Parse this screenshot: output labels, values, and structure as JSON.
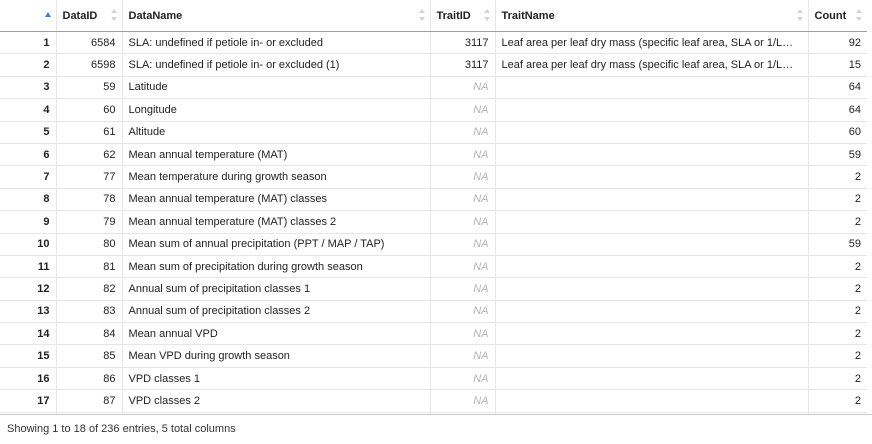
{
  "table": {
    "columns": [
      "",
      "DataID",
      "DataName",
      "TraitID",
      "TraitName",
      "Count"
    ],
    "rows": [
      {
        "idx": "1",
        "data_id": "6584",
        "data_name": "SLA: undefined if petiole in- or excluded",
        "trait_id": "3117",
        "trait_name": "Leaf area per leaf dry mass (specific leaf area, SLA or 1/LMA)...",
        "count": "92"
      },
      {
        "idx": "2",
        "data_id": "6598",
        "data_name": "SLA: undefined if petiole in- or excluded (1)",
        "trait_id": "3117",
        "trait_name": "Leaf area per leaf dry mass (specific leaf area, SLA or 1/LMA)...",
        "count": "15"
      },
      {
        "idx": "3",
        "data_id": "59",
        "data_name": "Latitude",
        "trait_id": "NA",
        "trait_name": "",
        "count": "64"
      },
      {
        "idx": "4",
        "data_id": "60",
        "data_name": "Longitude",
        "trait_id": "NA",
        "trait_name": "",
        "count": "64"
      },
      {
        "idx": "5",
        "data_id": "61",
        "data_name": "Altitude",
        "trait_id": "NA",
        "trait_name": "",
        "count": "60"
      },
      {
        "idx": "6",
        "data_id": "62",
        "data_name": "Mean annual temperature (MAT)",
        "trait_id": "NA",
        "trait_name": "",
        "count": "59"
      },
      {
        "idx": "7",
        "data_id": "77",
        "data_name": "Mean temperature during growth season",
        "trait_id": "NA",
        "trait_name": "",
        "count": "2"
      },
      {
        "idx": "8",
        "data_id": "78",
        "data_name": "Mean annual temperature (MAT) classes",
        "trait_id": "NA",
        "trait_name": "",
        "count": "2"
      },
      {
        "idx": "9",
        "data_id": "79",
        "data_name": "Mean annual temperature (MAT) classes 2",
        "trait_id": "NA",
        "trait_name": "",
        "count": "2"
      },
      {
        "idx": "10",
        "data_id": "80",
        "data_name": "Mean sum of annual precipitation (PPT / MAP / TAP)",
        "trait_id": "NA",
        "trait_name": "",
        "count": "59"
      },
      {
        "idx": "11",
        "data_id": "81",
        "data_name": "Mean sum of precipitation during growth season",
        "trait_id": "NA",
        "trait_name": "",
        "count": "2"
      },
      {
        "idx": "12",
        "data_id": "82",
        "data_name": "Annual sum of precipitation classes 1",
        "trait_id": "NA",
        "trait_name": "",
        "count": "2"
      },
      {
        "idx": "13",
        "data_id": "83",
        "data_name": "Annual sum of precipitation classes 2",
        "trait_id": "NA",
        "trait_name": "",
        "count": "2"
      },
      {
        "idx": "14",
        "data_id": "84",
        "data_name": "Mean annual VPD",
        "trait_id": "NA",
        "trait_name": "",
        "count": "2"
      },
      {
        "idx": "15",
        "data_id": "85",
        "data_name": "Mean VPD during growth season",
        "trait_id": "NA",
        "trait_name": "",
        "count": "2"
      },
      {
        "idx": "16",
        "data_id": "86",
        "data_name": "VPD classes 1",
        "trait_id": "NA",
        "trait_name": "",
        "count": "2"
      },
      {
        "idx": "17",
        "data_id": "87",
        "data_name": "VPD classes 2",
        "trait_id": "NA",
        "trait_name": "",
        "count": "2"
      },
      {
        "idx": "",
        "data_id": "",
        "data_name": "",
        "trait_id": "",
        "trait_name": "",
        "count": ""
      }
    ]
  },
  "footer": {
    "info": "Showing 1 to 18 of 236 entries, 5 total columns"
  },
  "colors": {
    "sort_active": "#3c7ecb",
    "sort_inactive": "#d4d4d4",
    "na_text": "#b5b5b5"
  },
  "icons": {
    "sort_indicator": "sort-arrows-icon",
    "active_sort": "sort-ascending-icon"
  }
}
